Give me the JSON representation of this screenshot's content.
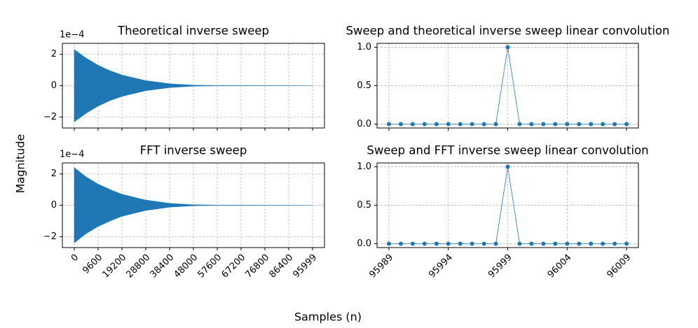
{
  "figure": {
    "xlabel": "Samples (n)",
    "ylabel": "Magnitude"
  },
  "chart_data": [
    {
      "type": "envelope",
      "title": "Theoretical inverse sweep",
      "offset_label": "1e−4",
      "color": "#1f77b4",
      "x": [
        0,
        4800,
        9600,
        14400,
        19200,
        28800,
        38400,
        48000,
        57600,
        95999
      ],
      "upper": [
        0.00023,
        0.000175,
        0.00013,
        9.5e-05,
        6.8e-05,
        3.2e-05,
        1.2e-05,
        3e-06,
        1e-06,
        0
      ],
      "lower": [
        -0.00023,
        -0.000175,
        -0.00013,
        -9.5e-05,
        -6.8e-05,
        -3.2e-05,
        -1.2e-05,
        -3e-06,
        -1e-06,
        0
      ],
      "xlim": [
        -4800,
        100799
      ],
      "ylim": [
        -0.00027,
        0.00027
      ],
      "xticks": [
        0,
        9600,
        19200,
        28800,
        38400,
        48000,
        57600,
        67200,
        76800,
        86400,
        95999
      ],
      "xtick_labels": false,
      "yticks": [
        {
          "value": -0.0002,
          "label": "−2"
        },
        {
          "value": 0,
          "label": "0"
        },
        {
          "value": 0.0002,
          "label": "2"
        }
      ],
      "grid": true
    },
    {
      "type": "line",
      "title": "Sweep and theoretical inverse sweep linear convolution",
      "color": "#1f77b4",
      "x": [
        95989,
        95990,
        95991,
        95992,
        95993,
        95994,
        95995,
        95996,
        95997,
        95998,
        95999,
        96000,
        96001,
        96002,
        96003,
        96004,
        96005,
        96006,
        96007,
        96008,
        96009
      ],
      "values": [
        0,
        0,
        0,
        0,
        0,
        0,
        0,
        0,
        0,
        0,
        1,
        0,
        0,
        0,
        0,
        0,
        0,
        0,
        0,
        0,
        0
      ],
      "xlim": [
        95988,
        96010
      ],
      "ylim": [
        -0.05,
        1.05
      ],
      "xticks": [
        95989,
        95994,
        95999,
        96004,
        96009
      ],
      "xtick_labels": false,
      "yticks": [
        {
          "value": 0,
          "label": "0.0"
        },
        {
          "value": 0.5,
          "label": "0.5"
        },
        {
          "value": 1,
          "label": "1.0"
        }
      ],
      "grid": true
    },
    {
      "type": "envelope",
      "title": "FFT inverse sweep",
      "offset_label": "1e−4",
      "color": "#1f77b4",
      "x": [
        0,
        4800,
        9600,
        14400,
        19200,
        28800,
        38400,
        48000,
        57600,
        95999
      ],
      "upper": [
        0.00024,
        0.00018,
        0.000135,
        0.0001,
        7e-05,
        3.3e-05,
        1.2e-05,
        3e-06,
        1e-06,
        0
      ],
      "lower": [
        -0.00024,
        -0.00018,
        -0.000135,
        -0.0001,
        -7e-05,
        -3.3e-05,
        -1.2e-05,
        -3e-06,
        -1e-06,
        0
      ],
      "xlim": [
        -4800,
        100799
      ],
      "ylim": [
        -0.00027,
        0.00027
      ],
      "xticks": [
        0,
        9600,
        19200,
        28800,
        38400,
        48000,
        57600,
        67200,
        76800,
        86400,
        95999
      ],
      "xtick_labels": true,
      "yticks": [
        {
          "value": -0.0002,
          "label": "−2"
        },
        {
          "value": 0,
          "label": "0"
        },
        {
          "value": 0.0002,
          "label": "2"
        }
      ],
      "grid": true
    },
    {
      "type": "line",
      "title": "Sweep and FFT inverse sweep linear convolution",
      "color": "#1f77b4",
      "x": [
        95989,
        95990,
        95991,
        95992,
        95993,
        95994,
        95995,
        95996,
        95997,
        95998,
        95999,
        96000,
        96001,
        96002,
        96003,
        96004,
        96005,
        96006,
        96007,
        96008,
        96009
      ],
      "values": [
        0,
        0,
        0,
        0,
        0,
        0,
        0,
        0,
        0,
        0,
        1,
        0,
        0,
        0,
        0,
        0,
        0,
        0,
        0,
        0,
        0
      ],
      "xlim": [
        95988,
        96010
      ],
      "ylim": [
        -0.05,
        1.05
      ],
      "xticks": [
        95989,
        95994,
        95999,
        96004,
        96009
      ],
      "xtick_labels": true,
      "yticks": [
        {
          "value": 0,
          "label": "0.0"
        },
        {
          "value": 0.5,
          "label": "0.5"
        },
        {
          "value": 1,
          "label": "1.0"
        }
      ],
      "grid": true
    }
  ]
}
